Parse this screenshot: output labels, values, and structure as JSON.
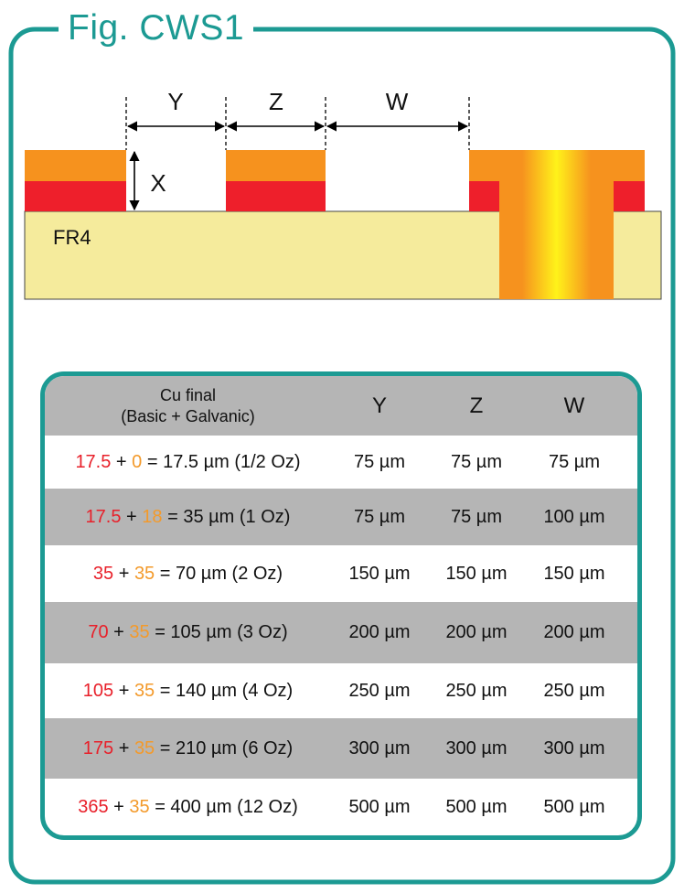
{
  "figure": {
    "title": "Fig. CWS1"
  },
  "diagram": {
    "dim_labels": {
      "y": "Y",
      "z": "Z",
      "w": "W",
      "x": "X"
    },
    "substrate_label": "FR4",
    "colors": {
      "frame": "#1c9a93",
      "basic_cu": "#ee1f2b",
      "galvanic_cu": "#f6921e",
      "substrate": "#f5eb9c"
    }
  },
  "table": {
    "header": {
      "col0_line1": "Cu final",
      "col0_line2": "(Basic + Galvanic)",
      "y": "Y",
      "z": "Z",
      "w": "W"
    },
    "rows": [
      {
        "basic": "17.5",
        "galvanic": "0",
        "rest": "= 17.5 µm (1/2 Oz)",
        "y": "75 µm",
        "z": "75 µm",
        "w": "75 µm"
      },
      {
        "basic": "17.5",
        "galvanic": "18",
        "rest": "= 35 µm (1 Oz)",
        "y": "75 µm",
        "z": "75 µm",
        "w": "100 µm"
      },
      {
        "basic": "35",
        "galvanic": "35",
        "rest": "= 70 µm (2 Oz)",
        "y": "150 µm",
        "z": "150 µm",
        "w": "150 µm"
      },
      {
        "basic": "70",
        "galvanic": "35",
        "rest": "= 105 µm (3 Oz)",
        "y": "200 µm",
        "z": "200 µm",
        "w": "200 µm"
      },
      {
        "basic": "105",
        "galvanic": "35",
        "rest": "= 140 µm (4 Oz)",
        "y": "250 µm",
        "z": "250 µm",
        "w": "250 µm"
      },
      {
        "basic": "175",
        "galvanic": "35",
        "rest": "= 210 µm (6 Oz)",
        "y": "300 µm",
        "z": "300 µm",
        "w": "300 µm"
      },
      {
        "basic": "365",
        "galvanic": "35",
        "rest": "= 400 µm (12 Oz)",
        "y": "500 µm",
        "z": "500 µm",
        "w": "500 µm"
      }
    ]
  }
}
